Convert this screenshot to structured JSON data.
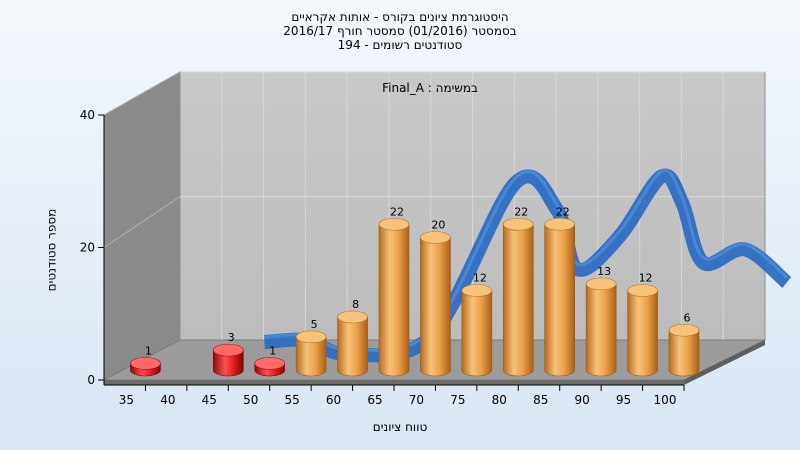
{
  "header": {
    "title_line1": "היסטוגרמת ציונים בקורס - אותות אקראיים",
    "title_line2": "בסמסטר  (01/2016)  סמסטר חורף 2016/17",
    "title_line3": "סטודנטים רשומים - 194"
  },
  "chart_data": {
    "type": "bar",
    "annotation": "במשימה : Final_A",
    "xlabel": "טווח ציונים",
    "ylabel": "מספר סטודנטים",
    "ylim": [
      0,
      40
    ],
    "yticks": [
      0,
      20,
      40
    ],
    "xticks": [
      "35",
      "40",
      "45",
      "50",
      "55",
      "60",
      "65",
      "70",
      "75",
      "80",
      "85",
      "90",
      "95",
      "100"
    ],
    "bins": [
      35,
      45,
      50,
      55,
      60,
      65,
      70,
      75,
      80,
      85,
      90,
      95,
      100
    ],
    "values": [
      1,
      3,
      1,
      5,
      8,
      22,
      20,
      12,
      22,
      22,
      13,
      12,
      6
    ],
    "failing_bins": [
      35,
      45,
      50
    ],
    "curve": [
      {
        "x": 45,
        "y": 3
      },
      {
        "x": 50,
        "y": 3.3
      },
      {
        "x": 55,
        "y": 1.2
      },
      {
        "x": 65,
        "y": 4
      },
      {
        "x": 75,
        "y": 27
      },
      {
        "x": 80,
        "y": 23
      },
      {
        "x": 82.5,
        "y": 14
      },
      {
        "x": 87.5,
        "y": 19
      },
      {
        "x": 92.5,
        "y": 28
      },
      {
        "x": 95,
        "y": 24
      },
      {
        "x": 97.5,
        "y": 15
      },
      {
        "x": 102.5,
        "y": 17
      },
      {
        "x": 107.5,
        "y": 12
      }
    ],
    "colors": {
      "fail_bar": "#dd1b1b",
      "pass_bar": "#eba04a",
      "curve": "#2f6ec2",
      "back_wall": "#bcbcbc",
      "side_wall": "#8a8a8a",
      "floor": "#9c9c9c"
    }
  }
}
